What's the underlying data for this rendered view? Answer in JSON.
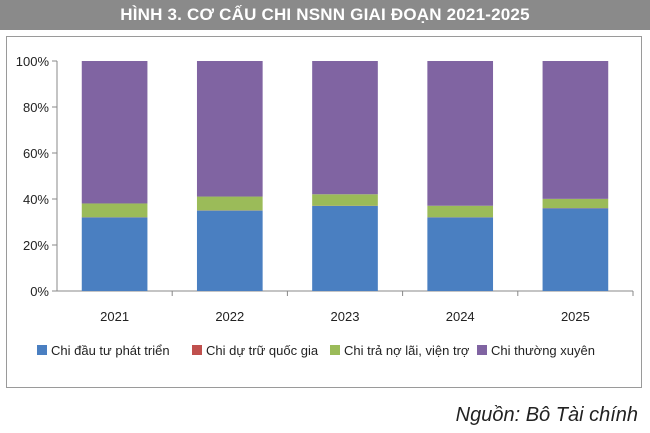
{
  "title": "HÌNH 3. CƠ CẤU CHI NSNN GIAI ĐOẠN 2021-2025",
  "source": "Nguồn: Bô Tài chính",
  "chart_data": {
    "type": "bar",
    "stacked": true,
    "normalized": true,
    "categories": [
      "2021",
      "2022",
      "2023",
      "2024",
      "2025"
    ],
    "y_ticks": [
      "0%",
      "20%",
      "40%",
      "60%",
      "80%",
      "100%"
    ],
    "ylim": [
      0,
      100
    ],
    "grid": false,
    "legend_position": "bottom",
    "series": [
      {
        "name": "Chi đầu tư phát triển",
        "color": "#4a7fc1",
        "values": [
          32,
          35,
          37,
          32,
          36
        ]
      },
      {
        "name": "Chi dự trữ quốc gia",
        "color": "#c0504d",
        "values": [
          0.1,
          0.1,
          0.1,
          0.1,
          0.1
        ]
      },
      {
        "name": "Chi trả nợ lãi, viện trợ",
        "color": "#9bbb59",
        "values": [
          6,
          6,
          5,
          5,
          4
        ]
      },
      {
        "name": "Chi thường xuyên",
        "color": "#8064a2",
        "values": [
          62,
          59,
          58,
          63,
          60
        ]
      }
    ]
  }
}
